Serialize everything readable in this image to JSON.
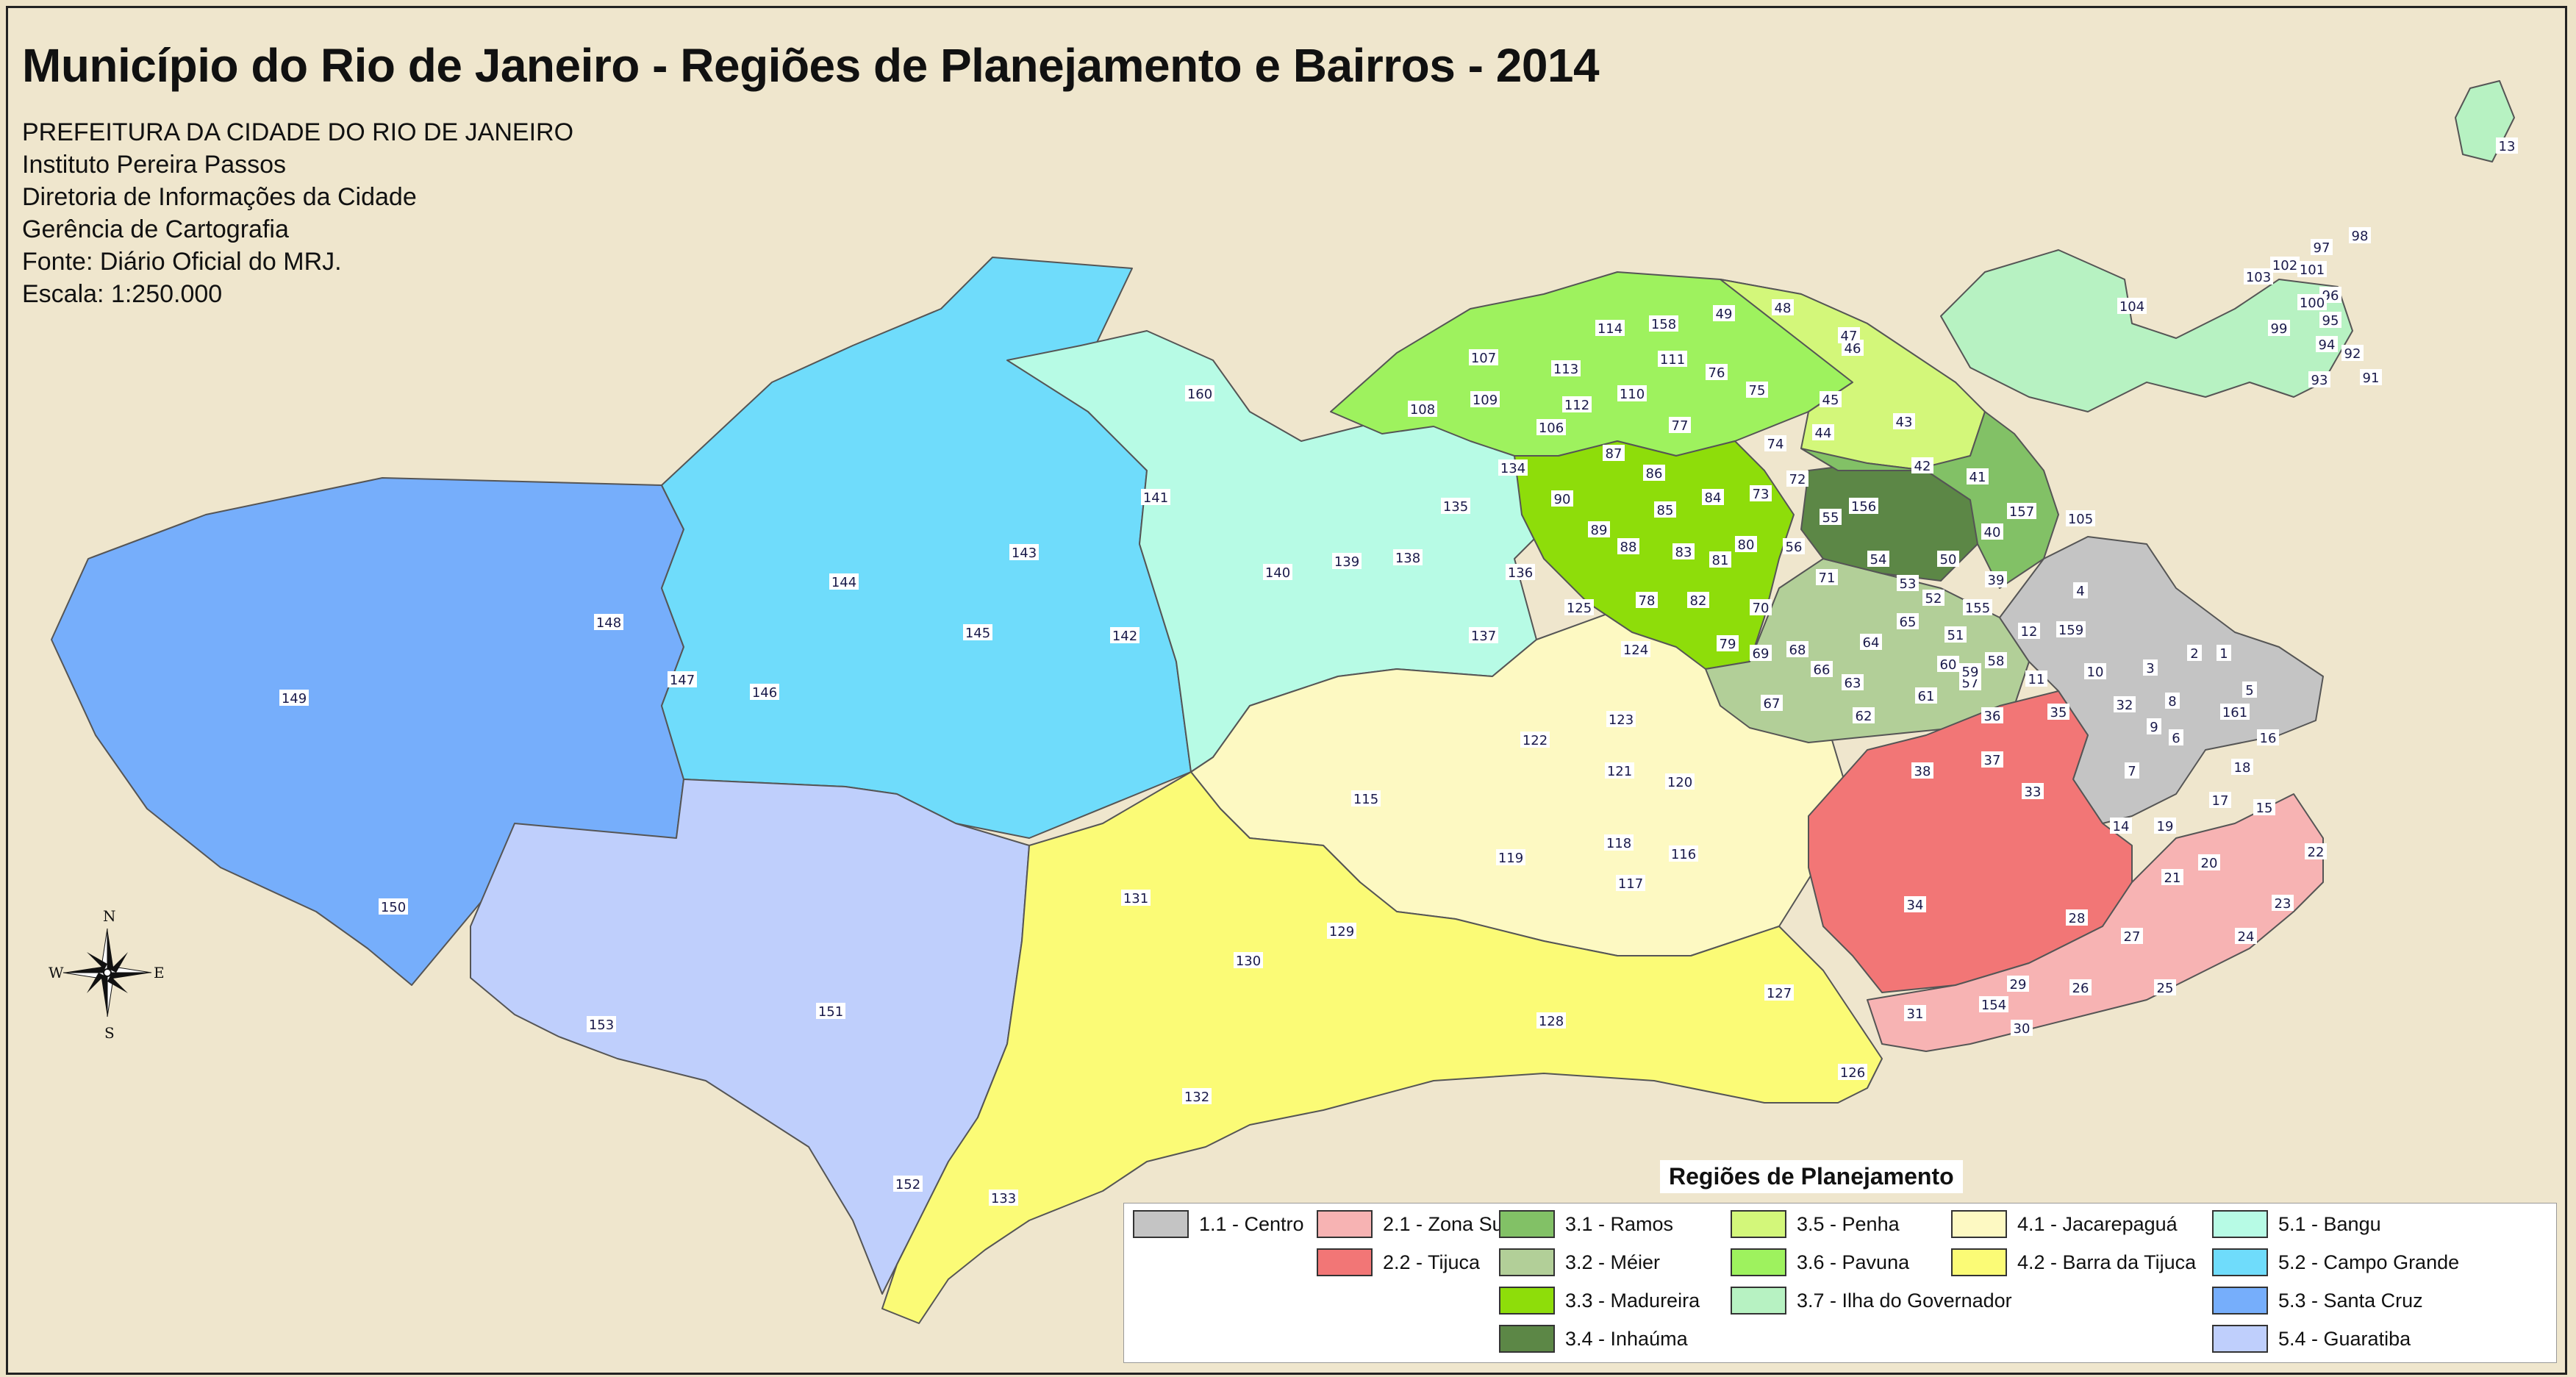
{
  "title": "Município do Rio de Janeiro - Regiões de Planejamento e Bairros - 2014",
  "credits": [
    "PREFEITURA DA CIDADE DO RIO DE JANEIRO",
    "Instituto Pereira Passos",
    "Diretoria de Informações da Cidade",
    "Gerência de Cartografia",
    "Fonte: Diário Oficial do MRJ.",
    "Escala: 1:250.000"
  ],
  "compass": {
    "n": "N",
    "s": "S",
    "e": "E",
    "w": "W"
  },
  "legend": {
    "title": "Regiões de Planejamento",
    "items": [
      {
        "label": "1.1 - Centro",
        "color": "#c4c4c4"
      },
      {
        "label": "2.1 - Zona Sul",
        "color": "#f7b3b3"
      },
      {
        "label": "2.2 - Tijuca",
        "color": "#f27676"
      },
      {
        "label": "3.1 - Ramos",
        "color": "#82c166"
      },
      {
        "label": "3.2 - Méier",
        "color": "#b2cf98"
      },
      {
        "label": "3.3 - Madureira",
        "color": "#8edd0a"
      },
      {
        "label": "3.4 - Inhaúma",
        "color": "#5c8746"
      },
      {
        "label": "3.5 - Penha",
        "color": "#d3f77a"
      },
      {
        "label": "3.6 - Pavuna",
        "color": "#9ef25e"
      },
      {
        "label": "3.7 - Ilha do Governador",
        "color": "#b7f2c2"
      },
      {
        "label": "4.1 - Jacarepaguá",
        "color": "#fdf9c2"
      },
      {
        "label": "4.2 - Barra da Tijuca",
        "color": "#fbfb76"
      },
      {
        "label": "5.1 - Bangu",
        "color": "#b7fbe5"
      },
      {
        "label": "5.2 - Campo Grande",
        "color": "#6fdcfb"
      },
      {
        "label": "5.3 - Santa Cruz",
        "color": "#76aefb"
      },
      {
        "label": "5.4 - Guaratiba",
        "color": "#bfcffc"
      }
    ]
  },
  "neighborhood_labels": [
    "1",
    "2",
    "3",
    "4",
    "5",
    "6",
    "7",
    "8",
    "9",
    "10",
    "11",
    "12",
    "13",
    "14",
    "15",
    "16",
    "17",
    "18",
    "19",
    "20",
    "21",
    "22",
    "23",
    "24",
    "25",
    "26",
    "27",
    "28",
    "29",
    "30",
    "31",
    "32",
    "33",
    "34",
    "35",
    "36",
    "37",
    "38",
    "39",
    "40",
    "41",
    "42",
    "43",
    "44",
    "45",
    "46",
    "47",
    "48",
    "49",
    "50",
    "51",
    "52",
    "53",
    "54",
    "55",
    "56",
    "57",
    "58",
    "59",
    "60",
    "61",
    "62",
    "63",
    "64",
    "65",
    "66",
    "67",
    "68",
    "69",
    "70",
    "71",
    "72",
    "73",
    "74",
    "75",
    "76",
    "77",
    "78",
    "79",
    "80",
    "81",
    "82",
    "83",
    "84",
    "85",
    "86",
    "87",
    "88",
    "89",
    "90",
    "91",
    "92",
    "93",
    "94",
    "95",
    "96",
    "97",
    "98",
    "99",
    "100",
    "101",
    "102",
    "103",
    "104",
    "105",
    "106",
    "107",
    "108",
    "109",
    "110",
    "111",
    "112",
    "113",
    "114",
    "115",
    "116",
    "117",
    "118",
    "119",
    "120",
    "121",
    "122",
    "123",
    "124",
    "125",
    "126",
    "127",
    "128",
    "129",
    "130",
    "131",
    "132",
    "133",
    "134",
    "135",
    "136",
    "137",
    "138",
    "139",
    "140",
    "141",
    "142",
    "143",
    "144",
    "145",
    "146",
    "147",
    "148",
    "149",
    "150",
    "151",
    "152",
    "153",
    "154",
    "155",
    "156",
    "157",
    "158",
    "159",
    "160",
    "161"
  ]
}
